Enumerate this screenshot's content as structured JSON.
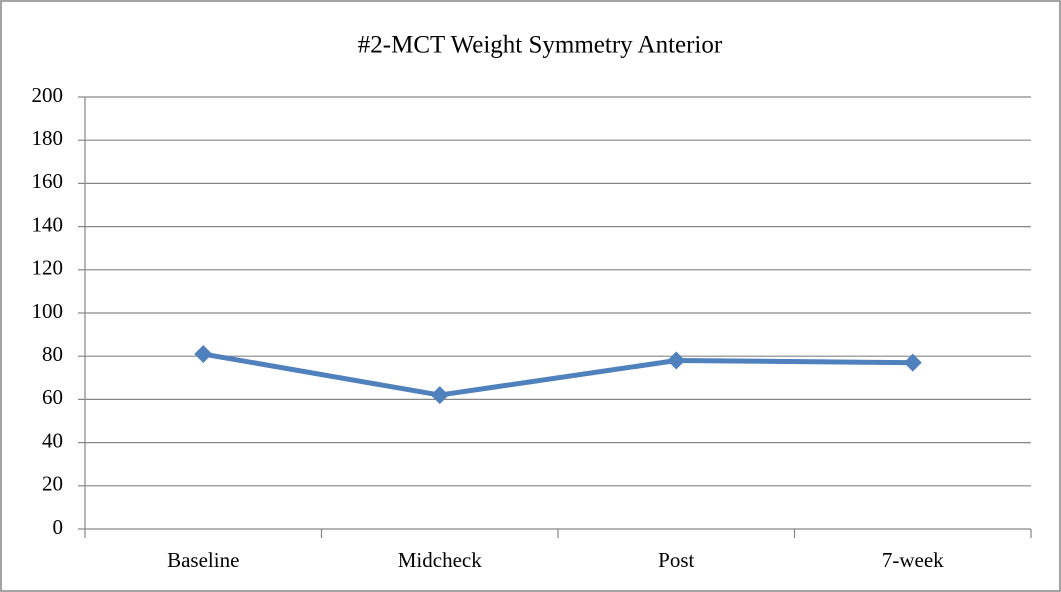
{
  "chart_data": {
    "type": "line",
    "title": "#2-MCT Weight Symmetry Anterior",
    "categories": [
      "Baseline",
      "Midcheck",
      "Post",
      "7-week"
    ],
    "values": [
      81,
      62,
      78,
      77
    ],
    "color": "#4f81bd",
    "ylim": [
      0,
      200
    ],
    "yticks": [
      0,
      20,
      40,
      60,
      80,
      100,
      120,
      140,
      160,
      180,
      200
    ],
    "grid": true
  }
}
